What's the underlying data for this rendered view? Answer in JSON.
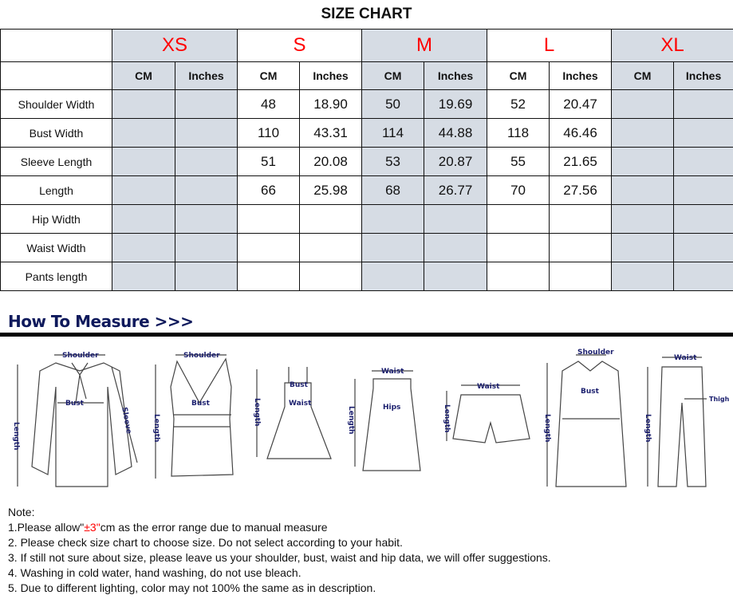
{
  "title": "SIZE CHART",
  "sizes": [
    "XS",
    "S",
    "M",
    "L",
    "XL"
  ],
  "units": {
    "cm": "CM",
    "inches": "Inches"
  },
  "rows": [
    {
      "label": "Shoulder Width",
      "values": [
        "",
        "",
        "48",
        "18.90",
        "50",
        "19.69",
        "52",
        "20.47",
        "",
        ""
      ]
    },
    {
      "label": "Bust Width",
      "values": [
        "",
        "",
        "110",
        "43.31",
        "114",
        "44.88",
        "118",
        "46.46",
        "",
        ""
      ]
    },
    {
      "label": "Sleeve Length",
      "values": [
        "",
        "",
        "51",
        "20.08",
        "53",
        "20.87",
        "55",
        "21.65",
        "",
        ""
      ]
    },
    {
      "label": "Length",
      "values": [
        "",
        "",
        "66",
        "25.98",
        "68",
        "26.77",
        "70",
        "27.56",
        "",
        ""
      ]
    },
    {
      "label": "Hip Width",
      "values": [
        "",
        "",
        "",
        "",
        "",
        "",
        "",
        "",
        "",
        ""
      ]
    },
    {
      "label": "Waist Width",
      "values": [
        "",
        "",
        "",
        "",
        "",
        "",
        "",
        "",
        "",
        ""
      ]
    },
    {
      "label": "Pants length",
      "values": [
        "",
        "",
        "",
        "",
        "",
        "",
        "",
        "",
        "",
        ""
      ]
    }
  ],
  "how_to_measure": {
    "heading": "How To Measure >>>",
    "labels": {
      "shoulder": "Shoulder",
      "bust": "Bust",
      "sleeve": "Sleeve",
      "length": "Length",
      "waist": "Waist",
      "hips": "Hips",
      "thigh": "Thigh"
    }
  },
  "colors": {
    "size_label": "#ff0000",
    "shaded": "#d6dce4",
    "heading": "#0f1a5c"
  },
  "notes": {
    "heading": "Note:",
    "line1_a": "1.Please allow\"",
    "line1_red": "±3\"",
    "line1_b": "cm as the error range due to manual measure",
    "line2": "2. Please check size chart to choose size. Do not select according to your habit.",
    "line3": "3. If still not sure about size, please leave us your shoulder, bust, waist and hip data, we will offer suggestions.",
    "line4": "4. Washing in cold water, hand washing, do not use bleach.",
    "line5": "5. Due to different lighting, color may not 100% the same as in description."
  }
}
